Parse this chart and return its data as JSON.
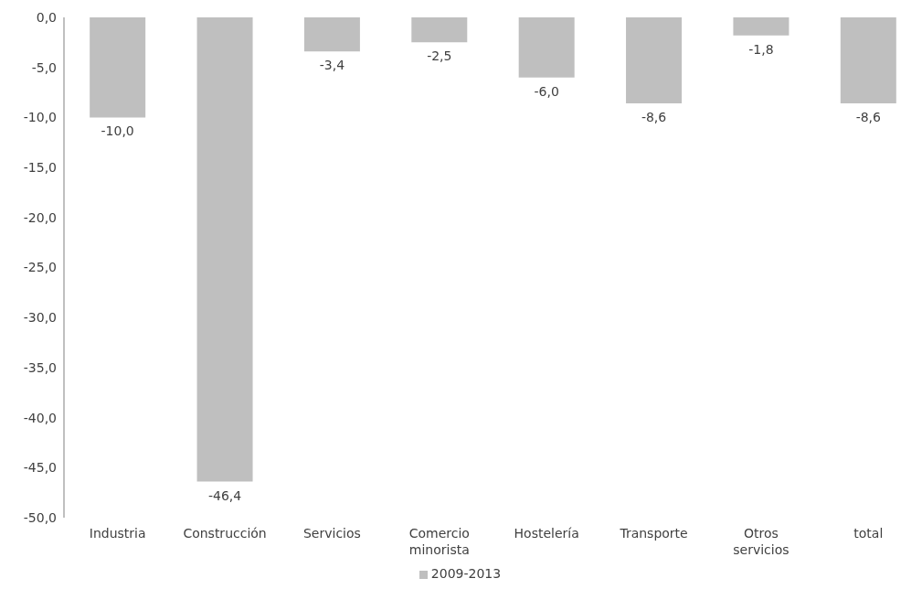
{
  "chart_data": {
    "type": "bar",
    "categories": [
      "Industria",
      "Construcción",
      "Servicios",
      "Comercio minorista",
      "Hostelería",
      "Transporte",
      "Otros servicios",
      "total"
    ],
    "series": [
      {
        "name": "2009-2013",
        "color": "#bfbfbf",
        "values": [
          -10.0,
          -46.4,
          -3.4,
          -2.5,
          -6.0,
          -8.6,
          -1.8,
          -8.6
        ],
        "value_labels": [
          "-10,0",
          "-46,4",
          "-3,4",
          "-2,5",
          "-6,0",
          "-8,6",
          "-1,8",
          "-8,6"
        ]
      }
    ],
    "ylim": [
      -50,
      0
    ],
    "yticks": [
      {
        "value": 0,
        "label": "0,0"
      },
      {
        "value": -5,
        "label": "-5,0"
      },
      {
        "value": -10,
        "label": "-10,0"
      },
      {
        "value": -15,
        "label": "-15,0"
      },
      {
        "value": -20,
        "label": "-20,0"
      },
      {
        "value": -25,
        "label": "-25,0"
      },
      {
        "value": -30,
        "label": "-30,0"
      },
      {
        "value": -35,
        "label": "-35,0"
      },
      {
        "value": -40,
        "label": "-40,0"
      },
      {
        "value": -45,
        "label": "-45,0"
      },
      {
        "value": -50,
        "label": "-50,0"
      }
    ],
    "grid": false,
    "legend": "bottom"
  }
}
